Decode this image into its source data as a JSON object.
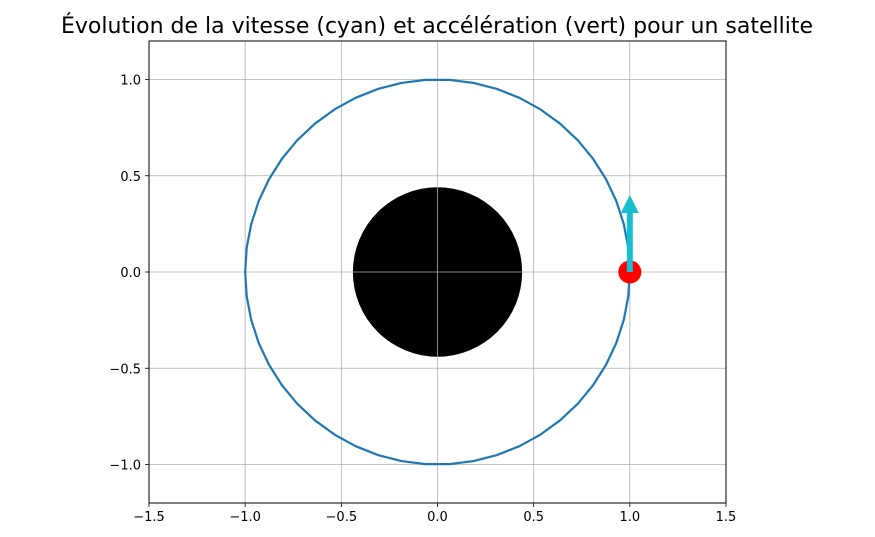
{
  "chart_data": {
    "type": "line",
    "title": "Évolution de la vitesse (cyan) et accélération (vert) pour un satellite",
    "xlabel": "",
    "ylabel": "",
    "xlim": [
      -1.5,
      1.5
    ],
    "ylim": [
      -1.2,
      1.2
    ],
    "xticks": [
      -1.5,
      -1.0,
      -0.5,
      0.0,
      0.5,
      1.0,
      1.5
    ],
    "xtick_labels": [
      "−1.5",
      "−1.0",
      "−0.5",
      "0.0",
      "0.5",
      "1.0",
      "1.5"
    ],
    "yticks": [
      -1.0,
      -0.5,
      0.0,
      0.5,
      1.0
    ],
    "ytick_labels": [
      "−1.0",
      "−0.5",
      "0.0",
      "0.5",
      "1.0"
    ],
    "grid": true,
    "orbit": {
      "radius": 1.0,
      "center": [
        0.0,
        0.0
      ],
      "num_points": 51,
      "color": "#1f77b4"
    },
    "planet": {
      "center": [
        0.0,
        0.0
      ],
      "radius": 0.44,
      "color": "#000000"
    },
    "satellite": {
      "position": [
        1.0,
        0.0
      ],
      "radius": 0.06,
      "color": "#ff0000"
    },
    "velocity_vector": {
      "start": [
        1.0,
        0.0
      ],
      "end": [
        1.0,
        0.4
      ],
      "color": "#17becf"
    },
    "acceleration_vector": {
      "start": [
        1.0,
        0.0
      ],
      "end": [
        1.0,
        0.0
      ],
      "color": "#2ca02c"
    }
  }
}
